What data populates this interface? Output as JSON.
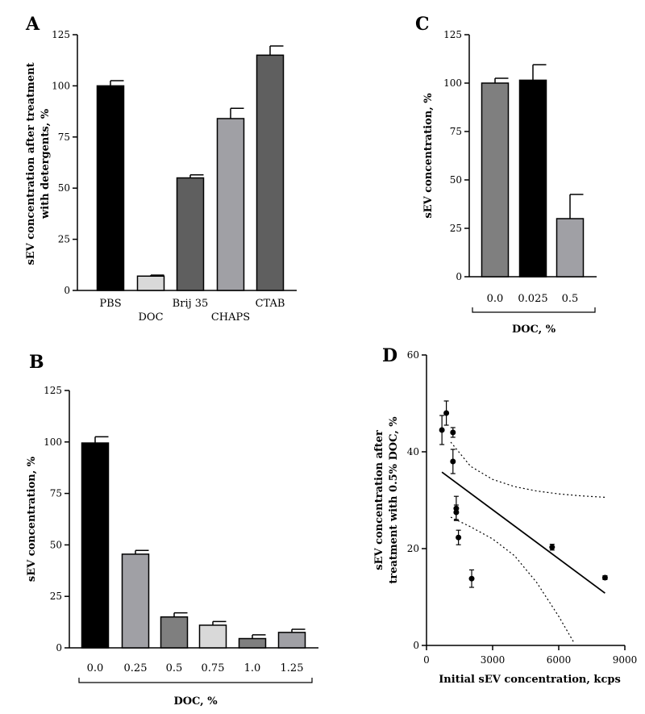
{
  "chart_data": [
    {
      "panel": "A",
      "type": "bar",
      "categories": [
        "PBS",
        "DOC",
        "Brij 35",
        "CHAPS",
        "CTAB"
      ],
      "values": [
        100,
        7,
        55,
        84,
        115
      ],
      "errors": [
        2.5,
        0.5,
        1.5,
        5,
        4.5
      ],
      "colors": [
        "#000000",
        "#d9d9d9",
        "#5f5f5f",
        "#a0a0a5",
        "#5f5f5f"
      ],
      "ylabel": "sEV concentration after treatment with detergents, %",
      "ylim": [
        0,
        125
      ],
      "yticks": [
        0,
        25,
        50,
        75,
        100,
        125
      ],
      "ytick_labels": [
        "0",
        "25",
        "50",
        "75",
        "100",
        "125"
      ],
      "xlabel": ""
    },
    {
      "panel": "C",
      "type": "bar",
      "categories": [
        "0.0",
        "0.025",
        "0.5"
      ],
      "values": [
        100,
        101.5,
        30
      ],
      "errors": [
        2.5,
        8,
        12.5
      ],
      "colors": [
        "#7f7f7f",
        "#000000",
        "#a0a0a5"
      ],
      "ylabel": "sEV concentration, %",
      "ylim": [
        0,
        125
      ],
      "yticks": [
        0,
        25,
        50,
        75,
        100,
        125
      ],
      "ytick_labels": [
        "0",
        "25",
        "50",
        "75",
        "100",
        "125"
      ],
      "xlabel": "DOC, %"
    },
    {
      "panel": "B",
      "type": "bar",
      "categories": [
        "0.0",
        "0.25",
        "0.5",
        "0.75",
        "1.0",
        "1.25"
      ],
      "values": [
        99.5,
        45.5,
        15,
        11,
        4.5,
        7.5
      ],
      "errors": [
        3,
        1.8,
        2,
        1.8,
        1.8,
        1.5
      ],
      "colors": [
        "#000000",
        "#a0a0a5",
        "#7f7f7f",
        "#d9d9d9",
        "#7f7f7f",
        "#a0a0a5"
      ],
      "ylabel": "sEV concentration, %",
      "ylim": [
        0,
        125
      ],
      "yticks": [
        0,
        25,
        50,
        75,
        100,
        125
      ],
      "ytick_labels": [
        "0",
        "25",
        "50",
        "75",
        "100",
        "125"
      ],
      "xlabel": "DOC, %"
    },
    {
      "panel": "D",
      "type": "scatter",
      "points": [
        {
          "x": 700,
          "y": 44.5,
          "yerr": 3,
          "xerr": 0
        },
        {
          "x": 900,
          "y": 48,
          "yerr": 2.5,
          "xerr": 0
        },
        {
          "x": 1200,
          "y": 44,
          "yerr": 1,
          "xerr": 0
        },
        {
          "x": 1200,
          "y": 38,
          "yerr": 2.5,
          "xerr": 0
        },
        {
          "x": 1350,
          "y": 27.5,
          "yerr": 1.5,
          "xerr": 0
        },
        {
          "x": 1350,
          "y": 28.3,
          "yerr": 2.5,
          "xerr": 0
        },
        {
          "x": 1450,
          "y": 22.3,
          "yerr": 1.5,
          "xerr": 0
        },
        {
          "x": 2050,
          "y": 13.8,
          "yerr": 1.8,
          "xerr": 0
        },
        {
          "x": 5700,
          "y": 20.3,
          "yerr": 0.6,
          "xerr": 100
        },
        {
          "x": 8100,
          "y": 14,
          "yerr": 0.4,
          "xerr": 80
        }
      ],
      "fit_line": [
        [
          700,
          35.8
        ],
        [
          8100,
          10.8
        ]
      ],
      "ci_upper": [
        [
          1100,
          42
        ],
        [
          2000,
          37
        ],
        [
          3000,
          34.3
        ],
        [
          4000,
          32.8
        ],
        [
          5000,
          31.9
        ],
        [
          6000,
          31.3
        ],
        [
          7000,
          30.9
        ],
        [
          8100,
          30.6
        ]
      ],
      "ci_lower": [
        [
          1100,
          26.5
        ],
        [
          2000,
          24.5
        ],
        [
          3000,
          22
        ],
        [
          4000,
          18.5
        ],
        [
          5000,
          13
        ],
        [
          6000,
          6
        ],
        [
          6700,
          0.5
        ]
      ],
      "xlabel": "Initial sEV concentration, kcps",
      "ylabel": "sEV concentration after treatment with 0.5% DOC, %",
      "xlim": [
        0,
        9000
      ],
      "ylim": [
        0,
        60
      ],
      "xticks": [
        0,
        3000,
        6000,
        9000
      ],
      "xtick_labels": [
        "0",
        "3000",
        "6000",
        "9000"
      ],
      "yticks": [
        0,
        20,
        40,
        60
      ],
      "ytick_labels": [
        "0",
        "20",
        "40",
        "60"
      ]
    }
  ],
  "panel_letters": {
    "a": "A",
    "b": "B",
    "c": "C",
    "d": "D"
  },
  "ylabel_a_line1": "sEV concentration after treatment",
  "ylabel_a_line2": "with detergents, %",
  "ylabel_d_line1": "sEV concentration after",
  "ylabel_d_line2": "treatment with 0.5% DOC, %"
}
